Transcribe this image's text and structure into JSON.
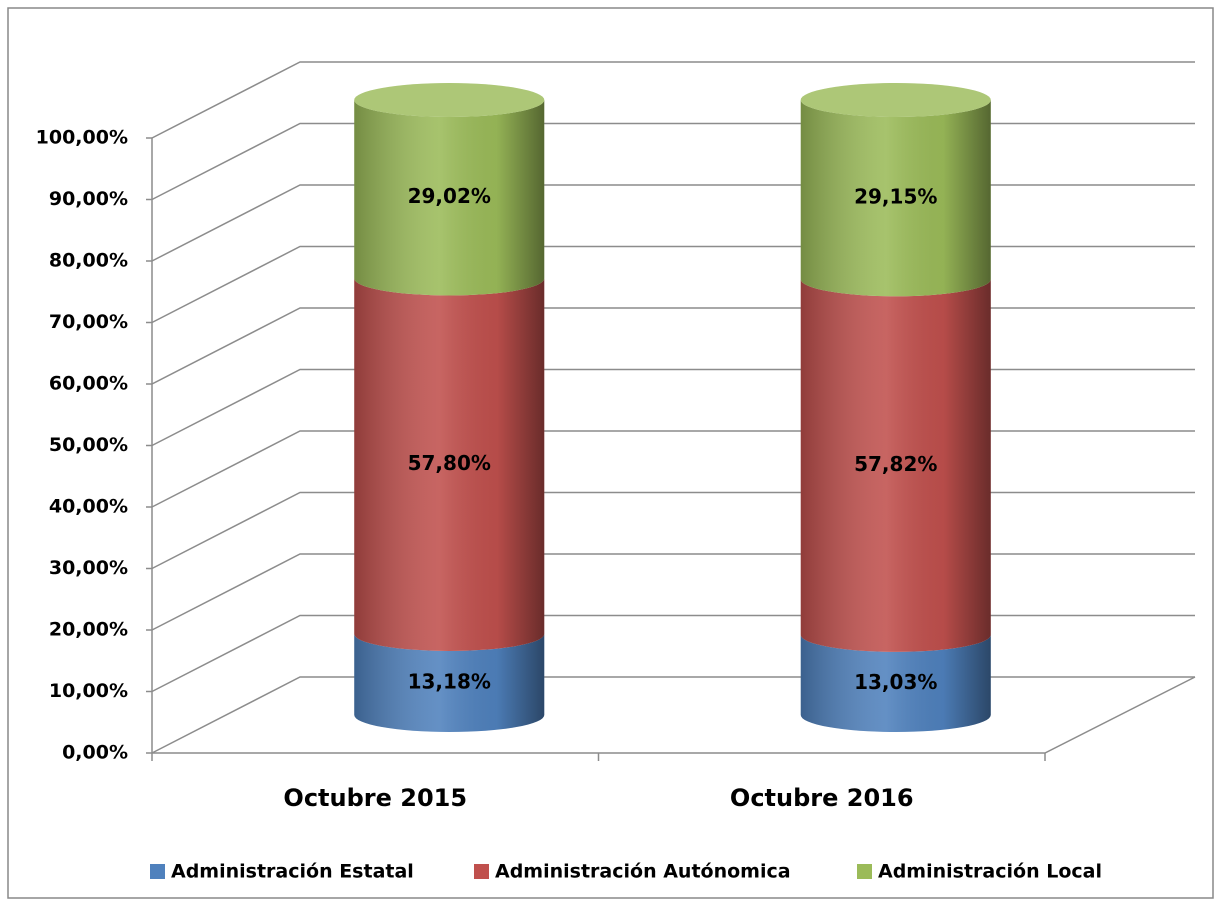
{
  "chart_data": {
    "type": "stacked-cylinder",
    "categories": [
      "Octubre 2015",
      "Octubre 2016"
    ],
    "series": [
      {
        "name": "Administración Estatal",
        "color": "#4f81bd",
        "values": [
          13.18,
          13.03
        ],
        "value_labels": [
          "13,18%",
          "13,03%"
        ]
      },
      {
        "name": "Administración Autónomica",
        "color": "#c0504d",
        "values": [
          57.8,
          57.82
        ],
        "value_labels": [
          "57,80%",
          "57,82%"
        ]
      },
      {
        "name": "Administración Local",
        "color": "#9bbb59",
        "values": [
          29.02,
          29.15
        ],
        "value_labels": [
          "29,02%",
          "29,15%"
        ]
      }
    ],
    "ylim": [
      0,
      100
    ],
    "yticks": [
      {
        "value": 0,
        "label": "0,00%"
      },
      {
        "value": 10,
        "label": "10,00%"
      },
      {
        "value": 20,
        "label": "20,00%"
      },
      {
        "value": 30,
        "label": "30,00%"
      },
      {
        "value": 40,
        "label": "40,00%"
      },
      {
        "value": 50,
        "label": "50,00%"
      },
      {
        "value": 60,
        "label": "60,00%"
      },
      {
        "value": 70,
        "label": "70,00%"
      },
      {
        "value": 80,
        "label": "80,00%"
      },
      {
        "value": 90,
        "label": "90,00%"
      },
      {
        "value": 100,
        "label": "100,00%"
      }
    ],
    "grid": true,
    "legend": "bottom"
  }
}
